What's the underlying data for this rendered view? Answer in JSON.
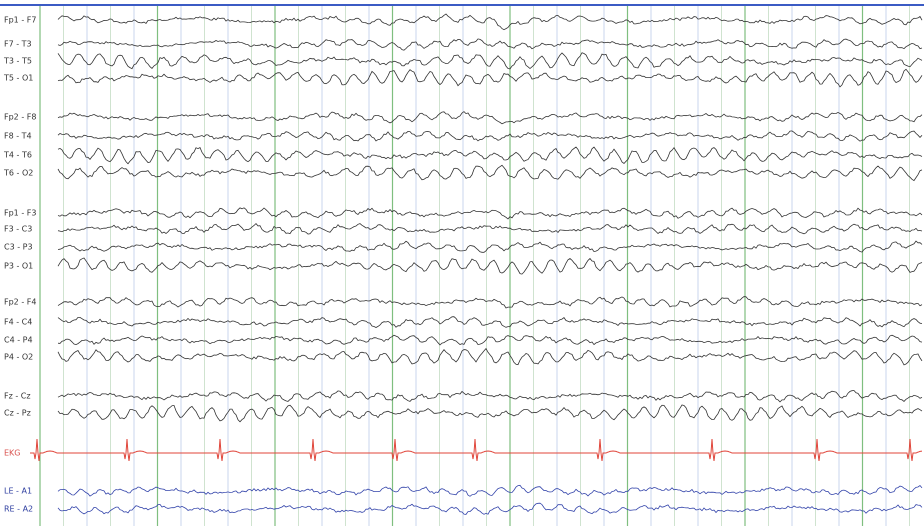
{
  "channels": [
    {
      "label": "Fp1 - F7"
    },
    {
      "label": "F7 - T3"
    },
    {
      "label": "T3 - T5"
    },
    {
      "label": "T5 - O1"
    },
    {
      "label": "Fp2 - F8"
    },
    {
      "label": "F8 - T4"
    },
    {
      "label": "T4 - T6"
    },
    {
      "label": "T6 - O2"
    },
    {
      "label": "Fp1 - F3"
    },
    {
      "label": "F3 - C3"
    },
    {
      "label": "C3 - P3"
    },
    {
      "label": "P3 - O1"
    },
    {
      "label": "Fp2 - F4"
    },
    {
      "label": "F4 - C4"
    },
    {
      "label": "C4 - P4"
    },
    {
      "label": "P4 - O2"
    },
    {
      "label": "Fz - Cz"
    },
    {
      "label": "Cz - Pz"
    },
    {
      "label": "EKG"
    },
    {
      "label": "LE - A1"
    },
    {
      "label": "RE - A2"
    }
  ]
}
